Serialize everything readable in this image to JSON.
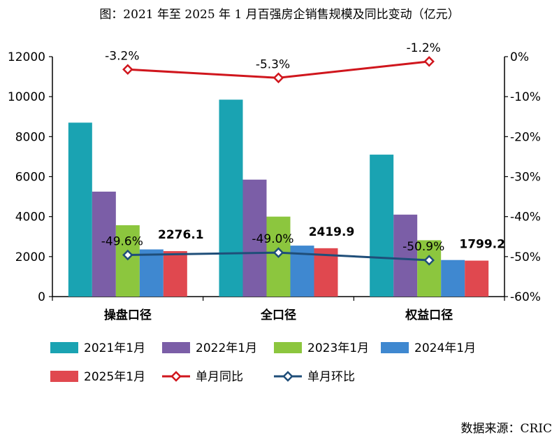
{
  "title": "图：2021 年至 2025 年 1 月百强房企销售规模及同比变动（亿元）",
  "source": "数据来源：CRIC",
  "chart_data": {
    "type": "bar",
    "categories": [
      "操盘口径",
      "全口径",
      "权益口径"
    ],
    "series": [
      {
        "name": "2021年1月",
        "type": "bar",
        "axis": "left",
        "color": "#1aa3b2",
        "values": [
          8700,
          9850,
          7100
        ]
      },
      {
        "name": "2022年1月",
        "type": "bar",
        "axis": "left",
        "color": "#7b5ea7",
        "values": [
          5250,
          5850,
          4100
        ]
      },
      {
        "name": "2023年1月",
        "type": "bar",
        "axis": "left",
        "color": "#8cc63e",
        "values": [
          3570,
          4000,
          2820
        ]
      },
      {
        "name": "2024年1月",
        "type": "bar",
        "axis": "left",
        "color": "#3f88d0",
        "values": [
          2360,
          2550,
          1830
        ]
      },
      {
        "name": "2025年1月",
        "type": "bar",
        "axis": "left",
        "color": "#e0484f",
        "values": [
          2276.1,
          2419.9,
          1799.2
        ]
      },
      {
        "name": "单月同比",
        "type": "line",
        "axis": "right",
        "color": "#d0161d",
        "values": [
          -3.2,
          -5.3,
          -1.2
        ]
      },
      {
        "name": "单月环比",
        "type": "line",
        "axis": "right",
        "color": "#1f4e79",
        "values": [
          -49.6,
          -49.0,
          -50.9
        ]
      }
    ],
    "bar_value_labels": [
      "2276.1",
      "2419.9",
      "1799.2"
    ],
    "yoy_labels": [
      "-3.2%",
      "-5.3%",
      "-1.2%"
    ],
    "mom_labels": [
      "-49.6%",
      "-49.0%",
      "-50.9%"
    ],
    "ylim_left": [
      0,
      12000
    ],
    "ylim_right": [
      -60,
      0
    ],
    "yticks_left": [
      "0",
      "2000",
      "4000",
      "6000",
      "8000",
      "10000",
      "12000"
    ],
    "yticks_right": [
      "-60%",
      "-50%",
      "-40%",
      "-30%",
      "-20%",
      "-10%",
      "0%"
    ],
    "grid": false,
    "legend": "bottom"
  }
}
